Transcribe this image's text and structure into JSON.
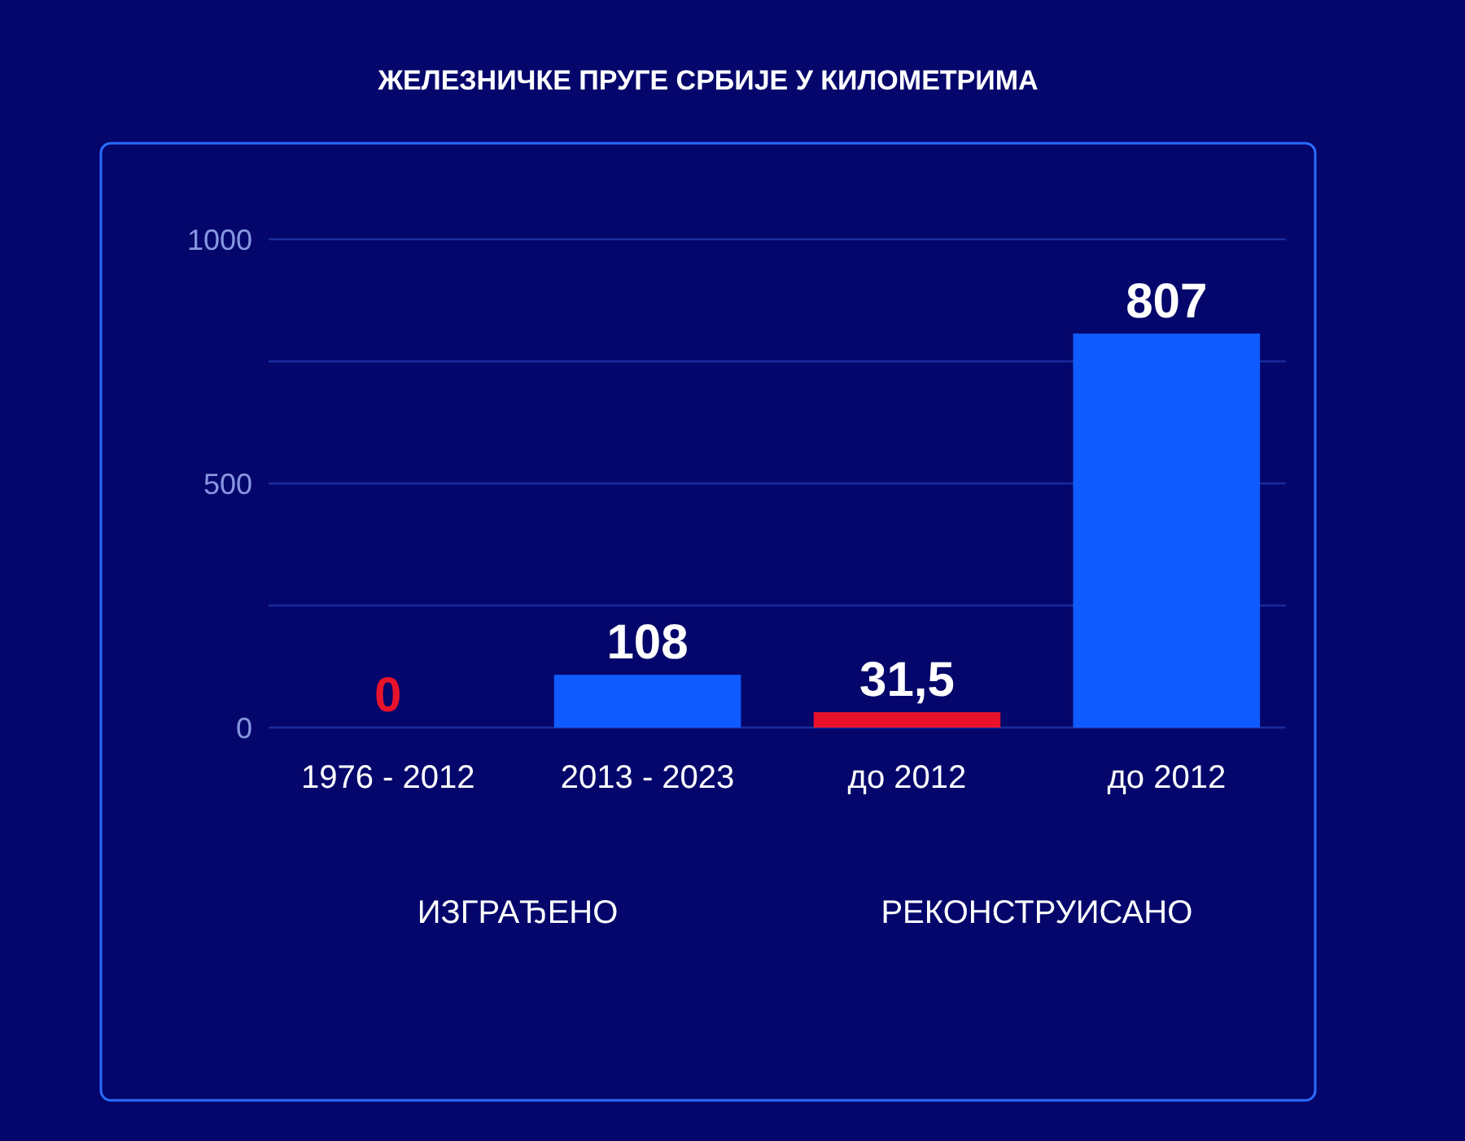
{
  "chart_data": {
    "type": "bar",
    "title": "ЖЕЛЕЗНИЧКЕ ПРУГЕ СРБИЈЕ У КИЛОМЕТРИМА",
    "categories": [
      "1976 - 2012",
      "2013 - 2023",
      "до 2012",
      "до 2012"
    ],
    "values": [
      0,
      108,
      31.5,
      807
    ],
    "colors": [
      "#e8132b",
      "#0f5bff",
      "#e8132b",
      "#0f5bff"
    ],
    "value_labels": [
      "0",
      "108",
      "31,5",
      "807"
    ],
    "ylim": [
      0,
      1000
    ],
    "yticks": [
      0,
      {
        "value": 250,
        "label": null
      },
      500,
      {
        "value": 750,
        "label": null
      },
      1000
    ],
    "grid": "y",
    "annotations": [
      "ИЗГРАЂЕНО",
      "РЕКОНСТРУИСАНО"
    ]
  }
}
